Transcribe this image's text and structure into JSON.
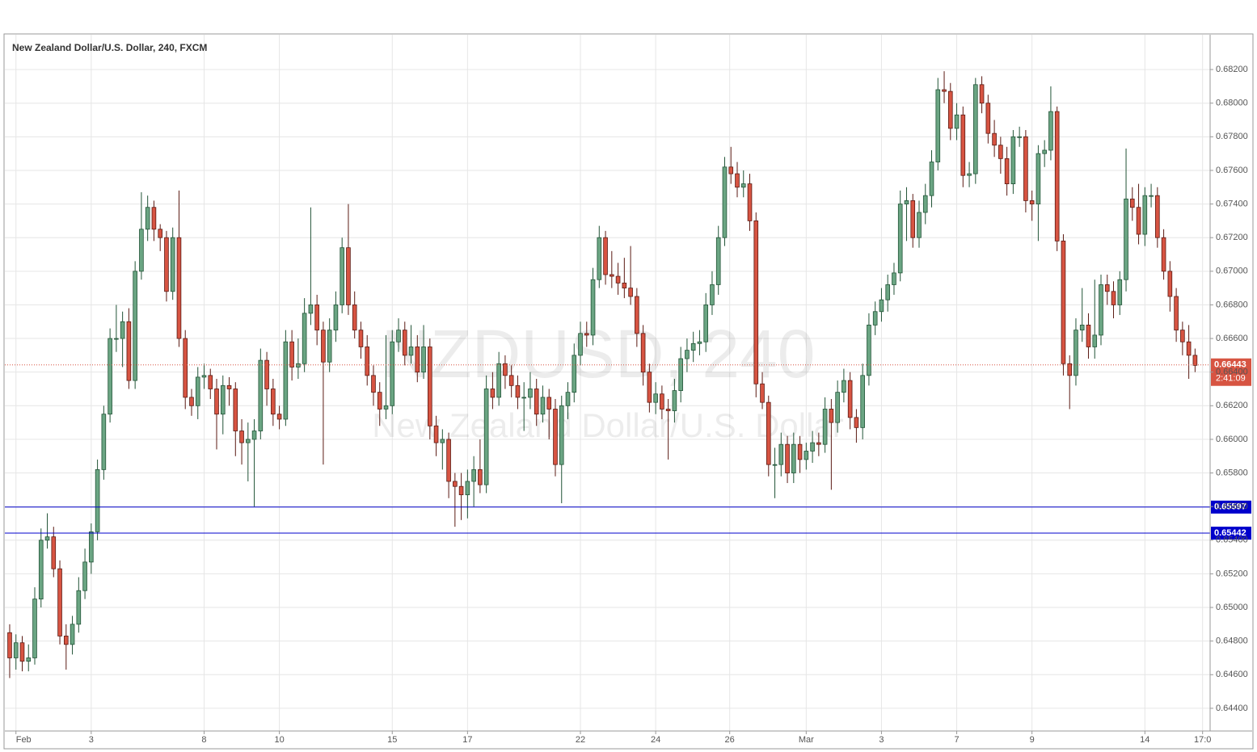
{
  "chart_data": {
    "type": "candlestick",
    "title": "New Zealand Dollar/U.S. Dollar, 240, FXCM",
    "watermark": [
      "NZDUSD, 240",
      "New Zealand Dollar/U.S. Dollar"
    ],
    "up_color": "#6ba583",
    "down_color": "#d75442",
    "grid": true,
    "xlim": [
      -0.77,
      191.4
    ],
    "ylim": [
      0.64265,
      0.68407
    ],
    "xticks": [
      {
        "value": 1,
        "label": "Feb"
      },
      {
        "value": 13,
        "label": "3"
      },
      {
        "value": 31,
        "label": "8"
      },
      {
        "value": 43,
        "label": "10"
      },
      {
        "value": 61,
        "label": "15"
      },
      {
        "value": 73,
        "label": "17"
      },
      {
        "value": 91,
        "label": "22"
      },
      {
        "value": 103,
        "label": "24"
      },
      {
        "value": 114.8,
        "label": "26"
      },
      {
        "value": 127,
        "label": "Mar"
      },
      {
        "value": 139,
        "label": "3"
      },
      {
        "value": 151,
        "label": "7"
      },
      {
        "value": 163,
        "label": "9"
      },
      {
        "value": 181,
        "label": "14"
      },
      {
        "value": 190.2,
        "label": "17:0"
      }
    ],
    "yticks": [
      {
        "value": 0.644,
        "label": "0.64400"
      },
      {
        "value": 0.646,
        "label": "0.64600"
      },
      {
        "value": 0.648,
        "label": "0.64800"
      },
      {
        "value": 0.65,
        "label": "0.65000"
      },
      {
        "value": 0.652,
        "label": "0.65200"
      },
      {
        "value": 0.654,
        "label": "0.65400"
      },
      {
        "value": 0.656,
        "label": "0.65600"
      },
      {
        "value": 0.658,
        "label": "0.65800"
      },
      {
        "value": 0.66,
        "label": "0.66000"
      },
      {
        "value": 0.662,
        "label": "0.66200"
      },
      {
        "value": 0.664,
        "label": "0.66400"
      },
      {
        "value": 0.666,
        "label": "0.66600"
      },
      {
        "value": 0.668,
        "label": "0.66800"
      },
      {
        "value": 0.67,
        "label": "0.67000"
      },
      {
        "value": 0.672,
        "label": "0.67200"
      },
      {
        "value": 0.674,
        "label": "0.67400"
      },
      {
        "value": 0.676,
        "label": "0.67600"
      },
      {
        "value": 0.678,
        "label": "0.67800"
      },
      {
        "value": 0.68,
        "label": "0.68000"
      },
      {
        "value": 0.682,
        "label": "0.68200"
      }
    ],
    "levels": [
      {
        "value": 0.65597,
        "color": "#0000cc"
      },
      {
        "value": 0.65442,
        "color": "#0000cc"
      }
    ],
    "last_price": {
      "value": 0.66443,
      "color": "#d75442",
      "countdown": "2:41:09"
    },
    "candles": [
      [
        0.6485,
        0.649,
        0.6458,
        0.647
      ],
      [
        0.647,
        0.6484,
        0.6463,
        0.6479
      ],
      [
        0.6479,
        0.6483,
        0.6462,
        0.6468
      ],
      [
        0.6468,
        0.6478,
        0.6462,
        0.647
      ],
      [
        0.647,
        0.6512,
        0.6466,
        0.6505
      ],
      [
        0.6505,
        0.6547,
        0.65,
        0.654
      ],
      [
        0.654,
        0.6556,
        0.6535,
        0.6542
      ],
      [
        0.6542,
        0.6548,
        0.6518,
        0.6523
      ],
      [
        0.6523,
        0.6528,
        0.6478,
        0.6483
      ],
      [
        0.6483,
        0.649,
        0.6463,
        0.6478
      ],
      [
        0.6478,
        0.6495,
        0.6472,
        0.649
      ],
      [
        0.649,
        0.6518,
        0.6485,
        0.651
      ],
      [
        0.651,
        0.6535,
        0.6505,
        0.6527
      ],
      [
        0.6527,
        0.655,
        0.652,
        0.6545
      ],
      [
        0.6545,
        0.6588,
        0.654,
        0.6582
      ],
      [
        0.6582,
        0.662,
        0.6576,
        0.6615
      ],
      [
        0.6615,
        0.6666,
        0.661,
        0.666
      ],
      [
        0.666,
        0.668,
        0.6652,
        0.666
      ],
      [
        0.666,
        0.6676,
        0.6643,
        0.667
      ],
      [
        0.667,
        0.6678,
        0.663,
        0.6635
      ],
      [
        0.6635,
        0.6706,
        0.663,
        0.67
      ],
      [
        0.67,
        0.6747,
        0.6695,
        0.6725
      ],
      [
        0.6725,
        0.6745,
        0.6718,
        0.6738
      ],
      [
        0.6738,
        0.6742,
        0.6718,
        0.6725
      ],
      [
        0.6725,
        0.6728,
        0.6712,
        0.672
      ],
      [
        0.672,
        0.6724,
        0.6682,
        0.6688
      ],
      [
        0.6688,
        0.6726,
        0.6683,
        0.672
      ],
      [
        0.672,
        0.6748,
        0.6655,
        0.666
      ],
      [
        0.666,
        0.6665,
        0.6618,
        0.6625
      ],
      [
        0.6625,
        0.663,
        0.6614,
        0.662
      ],
      [
        0.662,
        0.6643,
        0.6612,
        0.6637
      ],
      [
        0.6637,
        0.6645,
        0.663,
        0.6638
      ],
      [
        0.6638,
        0.6642,
        0.6624,
        0.663
      ],
      [
        0.663,
        0.6636,
        0.6594,
        0.6615
      ],
      [
        0.6615,
        0.6638,
        0.6603,
        0.6632
      ],
      [
        0.6632,
        0.6637,
        0.662,
        0.663
      ],
      [
        0.663,
        0.6634,
        0.659,
        0.6605
      ],
      [
        0.6605,
        0.6612,
        0.6585,
        0.6598
      ],
      [
        0.6598,
        0.661,
        0.6575,
        0.66
      ],
      [
        0.66,
        0.6612,
        0.656,
        0.6605
      ],
      [
        0.6605,
        0.6654,
        0.66,
        0.6647
      ],
      [
        0.6647,
        0.6652,
        0.662,
        0.663
      ],
      [
        0.663,
        0.6636,
        0.6608,
        0.6615
      ],
      [
        0.6615,
        0.662,
        0.6606,
        0.6612
      ],
      [
        0.6612,
        0.6665,
        0.6608,
        0.6658
      ],
      [
        0.6658,
        0.6665,
        0.6635,
        0.6643
      ],
      [
        0.6643,
        0.666,
        0.6636,
        0.6645
      ],
      [
        0.6645,
        0.6684,
        0.664,
        0.6675
      ],
      [
        0.6675,
        0.6738,
        0.6668,
        0.668
      ],
      [
        0.668,
        0.6686,
        0.6656,
        0.6665
      ],
      [
        0.6665,
        0.667,
        0.6585,
        0.6646
      ],
      [
        0.6646,
        0.6672,
        0.664,
        0.6665
      ],
      [
        0.6665,
        0.6688,
        0.6658,
        0.668
      ],
      [
        0.668,
        0.672,
        0.6675,
        0.6714
      ],
      [
        0.6714,
        0.674,
        0.6674,
        0.668
      ],
      [
        0.668,
        0.6688,
        0.666,
        0.6665
      ],
      [
        0.6665,
        0.667,
        0.6648,
        0.6655
      ],
      [
        0.6655,
        0.6662,
        0.6632,
        0.6638
      ],
      [
        0.6638,
        0.6644,
        0.662,
        0.6628
      ],
      [
        0.6628,
        0.6634,
        0.6608,
        0.6618
      ],
      [
        0.6618,
        0.6662,
        0.6612,
        0.662
      ],
      [
        0.662,
        0.6665,
        0.6615,
        0.6658
      ],
      [
        0.6658,
        0.6672,
        0.6652,
        0.6665
      ],
      [
        0.6665,
        0.667,
        0.6644,
        0.665
      ],
      [
        0.665,
        0.6668,
        0.6645,
        0.6655
      ],
      [
        0.6655,
        0.6662,
        0.6634,
        0.664
      ],
      [
        0.664,
        0.6668,
        0.6636,
        0.6655
      ],
      [
        0.6655,
        0.666,
        0.66,
        0.6608
      ],
      [
        0.6608,
        0.6614,
        0.659,
        0.6598
      ],
      [
        0.6598,
        0.6606,
        0.6582,
        0.66
      ],
      [
        0.66,
        0.6604,
        0.6565,
        0.6575
      ],
      [
        0.6575,
        0.658,
        0.6548,
        0.6572
      ],
      [
        0.6572,
        0.658,
        0.6552,
        0.6567
      ],
      [
        0.6567,
        0.6582,
        0.6553,
        0.6575
      ],
      [
        0.6575,
        0.659,
        0.656,
        0.6582
      ],
      [
        0.6582,
        0.66,
        0.6568,
        0.6573
      ],
      [
        0.6573,
        0.6638,
        0.6568,
        0.663
      ],
      [
        0.663,
        0.664,
        0.6618,
        0.6625
      ],
      [
        0.6625,
        0.6652,
        0.662,
        0.6645
      ],
      [
        0.6645,
        0.665,
        0.663,
        0.6638
      ],
      [
        0.6638,
        0.6644,
        0.6625,
        0.6632
      ],
      [
        0.6632,
        0.6638,
        0.6618,
        0.6625
      ],
      [
        0.6625,
        0.6634,
        0.6605,
        0.6625
      ],
      [
        0.6625,
        0.664,
        0.6618,
        0.663
      ],
      [
        0.663,
        0.6636,
        0.6608,
        0.6615
      ],
      [
        0.6615,
        0.6632,
        0.661,
        0.6625
      ],
      [
        0.6625,
        0.663,
        0.66,
        0.6618
      ],
      [
        0.6618,
        0.6624,
        0.6578,
        0.6585
      ],
      [
        0.6585,
        0.6626,
        0.6562,
        0.662
      ],
      [
        0.662,
        0.6634,
        0.6612,
        0.6628
      ],
      [
        0.6628,
        0.6657,
        0.6622,
        0.665
      ],
      [
        0.665,
        0.667,
        0.6644,
        0.6663
      ],
      [
        0.6663,
        0.667,
        0.6655,
        0.6662
      ],
      [
        0.6662,
        0.6702,
        0.6656,
        0.6695
      ],
      [
        0.6695,
        0.6727,
        0.669,
        0.672
      ],
      [
        0.672,
        0.6724,
        0.6692,
        0.6698
      ],
      [
        0.6698,
        0.6712,
        0.669,
        0.6697
      ],
      [
        0.6697,
        0.6705,
        0.6686,
        0.6693
      ],
      [
        0.6693,
        0.6708,
        0.6684,
        0.669
      ],
      [
        0.669,
        0.6715,
        0.668,
        0.6685
      ],
      [
        0.6685,
        0.669,
        0.6655,
        0.6663
      ],
      [
        0.6663,
        0.6668,
        0.6632,
        0.664
      ],
      [
        0.664,
        0.6645,
        0.6616,
        0.6622
      ],
      [
        0.6622,
        0.6634,
        0.6615,
        0.6627
      ],
      [
        0.6627,
        0.6632,
        0.6612,
        0.6618
      ],
      [
        0.6618,
        0.6624,
        0.6588,
        0.6617
      ],
      [
        0.6617,
        0.6636,
        0.661,
        0.6629
      ],
      [
        0.6629,
        0.6655,
        0.6622,
        0.6648
      ],
      [
        0.6648,
        0.666,
        0.664,
        0.6653
      ],
      [
        0.6653,
        0.6664,
        0.6646,
        0.6657
      ],
      [
        0.6657,
        0.6665,
        0.665,
        0.6658
      ],
      [
        0.6658,
        0.6687,
        0.6652,
        0.668
      ],
      [
        0.668,
        0.67,
        0.6674,
        0.6692
      ],
      [
        0.6692,
        0.6727,
        0.6686,
        0.672
      ],
      [
        0.672,
        0.6768,
        0.6715,
        0.6762
      ],
      [
        0.6762,
        0.6774,
        0.6752,
        0.6758
      ],
      [
        0.6758,
        0.6765,
        0.6744,
        0.675
      ],
      [
        0.675,
        0.676,
        0.6744,
        0.6752
      ],
      [
        0.6752,
        0.6758,
        0.6724,
        0.673
      ],
      [
        0.673,
        0.6735,
        0.6625,
        0.6633
      ],
      [
        0.6633,
        0.664,
        0.6618,
        0.6622
      ],
      [
        0.6622,
        0.6626,
        0.6578,
        0.6585
      ],
      [
        0.6585,
        0.6595,
        0.6565,
        0.6585
      ],
      [
        0.6585,
        0.6604,
        0.6578,
        0.6597
      ],
      [
        0.6597,
        0.6602,
        0.6574,
        0.658
      ],
      [
        0.658,
        0.6604,
        0.6574,
        0.6597
      ],
      [
        0.6597,
        0.6602,
        0.658,
        0.6588
      ],
      [
        0.6588,
        0.6598,
        0.6582,
        0.6593
      ],
      [
        0.6593,
        0.6605,
        0.6586,
        0.6598
      ],
      [
        0.6598,
        0.6604,
        0.659,
        0.6597
      ],
      [
        0.6597,
        0.6625,
        0.6592,
        0.6618
      ],
      [
        0.6618,
        0.6624,
        0.657,
        0.661
      ],
      [
        0.661,
        0.6635,
        0.6604,
        0.6628
      ],
      [
        0.6628,
        0.6642,
        0.6622,
        0.6635
      ],
      [
        0.6635,
        0.664,
        0.6606,
        0.6613
      ],
      [
        0.6613,
        0.6618,
        0.6598,
        0.6607
      ],
      [
        0.6607,
        0.6645,
        0.66,
        0.6638
      ],
      [
        0.6638,
        0.6675,
        0.6632,
        0.6668
      ],
      [
        0.6668,
        0.6682,
        0.6662,
        0.6676
      ],
      [
        0.6676,
        0.669,
        0.667,
        0.6683
      ],
      [
        0.6683,
        0.6698,
        0.6676,
        0.6692
      ],
      [
        0.6692,
        0.6705,
        0.6686,
        0.6699
      ],
      [
        0.6699,
        0.6748,
        0.6694,
        0.674
      ],
      [
        0.674,
        0.675,
        0.6718,
        0.6742
      ],
      [
        0.6742,
        0.6746,
        0.6714,
        0.672
      ],
      [
        0.672,
        0.6742,
        0.6714,
        0.6735
      ],
      [
        0.6735,
        0.6752,
        0.6728,
        0.6745
      ],
      [
        0.6745,
        0.6772,
        0.6738,
        0.6765
      ],
      [
        0.6765,
        0.6815,
        0.676,
        0.6808
      ],
      [
        0.6808,
        0.6819,
        0.68,
        0.6807
      ],
      [
        0.6807,
        0.6812,
        0.6778,
        0.6785
      ],
      [
        0.6785,
        0.68,
        0.6778,
        0.6793
      ],
      [
        0.6793,
        0.6798,
        0.675,
        0.6757
      ],
      [
        0.6757,
        0.6765,
        0.675,
        0.6758
      ],
      [
        0.6758,
        0.6815,
        0.6752,
        0.6811
      ],
      [
        0.6811,
        0.6816,
        0.6794,
        0.68
      ],
      [
        0.68,
        0.6805,
        0.6776,
        0.6782
      ],
      [
        0.6782,
        0.679,
        0.6768,
        0.6775
      ],
      [
        0.6775,
        0.678,
        0.6758,
        0.6767
      ],
      [
        0.6767,
        0.6774,
        0.6745,
        0.6752
      ],
      [
        0.6752,
        0.6784,
        0.6746,
        0.678
      ],
      [
        0.678,
        0.6786,
        0.6774,
        0.678
      ],
      [
        0.678,
        0.6784,
        0.6735,
        0.6742
      ],
      [
        0.6742,
        0.6748,
        0.673,
        0.674
      ],
      [
        0.674,
        0.6775,
        0.6718,
        0.677
      ],
      [
        0.677,
        0.6778,
        0.6762,
        0.6772
      ],
      [
        0.6772,
        0.681,
        0.6766,
        0.6795
      ],
      [
        0.6795,
        0.6798,
        0.6712,
        0.6718
      ],
      [
        0.6718,
        0.6722,
        0.6638,
        0.6645
      ],
      [
        0.6645,
        0.665,
        0.6618,
        0.6638
      ],
      [
        0.6638,
        0.6672,
        0.6632,
        0.6665
      ],
      [
        0.6665,
        0.669,
        0.6658,
        0.6668
      ],
      [
        0.6668,
        0.6675,
        0.6648,
        0.6655
      ],
      [
        0.6655,
        0.6695,
        0.6648,
        0.6662
      ],
      [
        0.6662,
        0.6698,
        0.6656,
        0.6692
      ],
      [
        0.6692,
        0.6698,
        0.668,
        0.6688
      ],
      [
        0.6688,
        0.6694,
        0.6672,
        0.668
      ],
      [
        0.668,
        0.67,
        0.6674,
        0.6695
      ],
      [
        0.6695,
        0.6773,
        0.6688,
        0.6743
      ],
      [
        0.6743,
        0.675,
        0.673,
        0.6738
      ],
      [
        0.6738,
        0.6752,
        0.6716,
        0.6722
      ],
      [
        0.6722,
        0.675,
        0.6715,
        0.6745
      ],
      [
        0.6745,
        0.6752,
        0.6738,
        0.6745
      ],
      [
        0.6745,
        0.675,
        0.6714,
        0.672
      ],
      [
        0.672,
        0.6725,
        0.6695,
        0.67
      ],
      [
        0.67,
        0.6706,
        0.6676,
        0.6685
      ],
      [
        0.6685,
        0.669,
        0.6658,
        0.6665
      ],
      [
        0.6665,
        0.667,
        0.665,
        0.6658
      ],
      [
        0.6658,
        0.6668,
        0.6636,
        0.665
      ],
      [
        0.665,
        0.6654,
        0.664,
        0.6644
      ]
    ]
  }
}
